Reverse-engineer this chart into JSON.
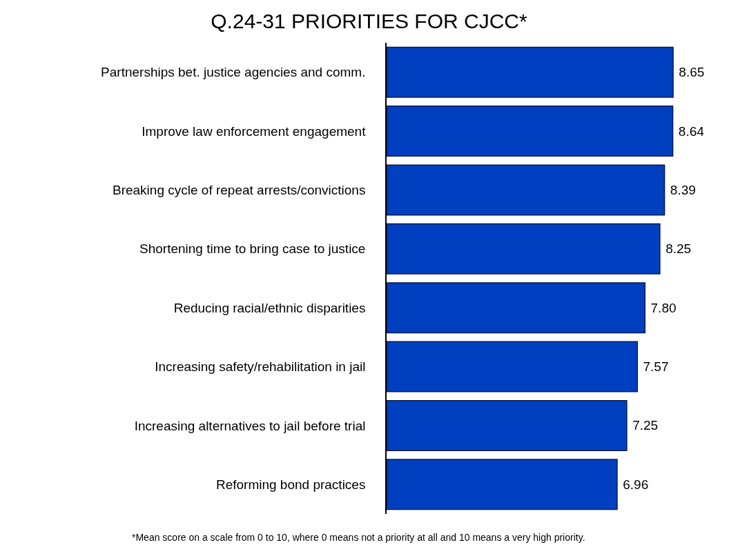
{
  "chart_data": {
    "type": "bar",
    "orientation": "horizontal",
    "title": "Q.24-31 PRIORITIES FOR CJCC*",
    "categories": [
      "Partnerships bet. justice agencies and comm.",
      "Improve law enforcement engagement",
      "Breaking cycle of repeat arrests/convictions",
      "Shortening time to bring case to justice",
      "Reducing racial/ethnic disparities",
      "Increasing safety/rehabilitation in jail",
      "Increasing alternatives to jail before trial",
      "Reforming bond practices"
    ],
    "values": [
      8.65,
      8.64,
      8.39,
      8.25,
      7.8,
      7.57,
      7.25,
      6.96
    ],
    "value_labels": [
      "8.65",
      "8.64",
      "8.39",
      "8.25",
      "7.80",
      "7.57",
      "7.25",
      "6.96"
    ],
    "color": "#0040c0",
    "annotations": [
      "*Mean score on a scale from 0 to 10, where 0 means not a priority at all and 10 means a very high priority."
    ],
    "legend": false
  }
}
